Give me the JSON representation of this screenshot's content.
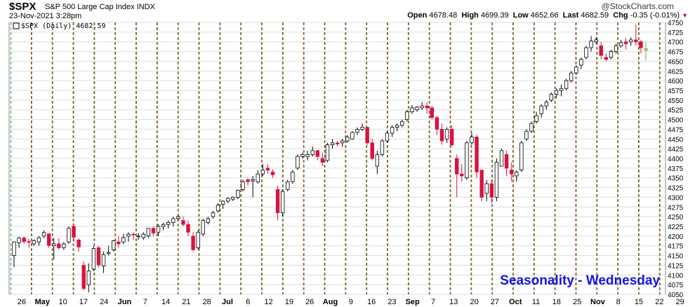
{
  "header": {
    "symbol": "$SPX",
    "description": "S&P 500 Large Cap Index INDX",
    "datetime": "23-Nov-2021 3:28pm",
    "brand": "@StockCharts.com",
    "open_label": "Open",
    "open": "4678.48",
    "high_label": "High",
    "high": "4699.39",
    "low_label": "Low",
    "low": "4652.66",
    "last_label": "Last",
    "last": "4682.59",
    "chg_label": "Chg",
    "chg": "-0.35 (-0.01%)"
  },
  "legend": "$SPX (Daily) 4682.59",
  "annotation": "Seasonality - Wednesday",
  "colors": {
    "up": "#ffffff",
    "down": "#d9123f",
    "last_bar": "#b5e08a",
    "annotation": "#1414e6",
    "mon_line": "#2aa02a",
    "wed_line": "#e02020"
  },
  "chart_data": {
    "type": "candlestick",
    "title": "$SPX (Daily)",
    "ylim": [
      4050,
      4750
    ],
    "y_ticks": [
      4050,
      4075,
      4100,
      4125,
      4150,
      4175,
      4200,
      4225,
      4250,
      4275,
      4300,
      4325,
      4350,
      4375,
      4400,
      4425,
      4450,
      4475,
      4500,
      4525,
      4550,
      4575,
      4600,
      4625,
      4650,
      4675,
      4700,
      4725,
      4750
    ],
    "grid": true,
    "x_labels": [
      "26",
      "May",
      "10",
      "17",
      "24",
      "Jun",
      "7",
      "14",
      "21",
      "28",
      "Jul",
      "6",
      "12",
      "19",
      "26",
      "Aug",
      "9",
      "16",
      "23",
      "Sep",
      "7",
      "13",
      "20",
      "27",
      "Oct",
      "11",
      "18",
      "25",
      "Nov",
      "8",
      "15",
      "22",
      "29"
    ],
    "vertical_lines": "green dashed = Mondays, red dashed = Wednesdays",
    "candles": [
      [
        4150,
        4187,
        4120,
        4185
      ],
      [
        4183,
        4198,
        4170,
        4195
      ],
      [
        4195,
        4200,
        4180,
        4186
      ],
      [
        4186,
        4192,
        4170,
        4184
      ],
      [
        4180,
        4192,
        4175,
        4188
      ],
      [
        4185,
        4200,
        4175,
        4196
      ],
      [
        4200,
        4215,
        4195,
        4209
      ],
      [
        4206,
        4206,
        4170,
        4176
      ],
      [
        4175,
        4195,
        4140,
        4180
      ],
      [
        4180,
        4195,
        4165,
        4170
      ],
      [
        4170,
        4185,
        4165,
        4180
      ],
      [
        4185,
        4225,
        4180,
        4220
      ],
      [
        4225,
        4233,
        4185,
        4197
      ],
      [
        4190,
        4195,
        4160,
        4172
      ],
      [
        4125,
        4135,
        4060,
        4065
      ],
      [
        4075,
        4130,
        4055,
        4110
      ],
      [
        4115,
        4175,
        4110,
        4168
      ],
      [
        4170,
        4175,
        4120,
        4126
      ],
      [
        4123,
        4160,
        4105,
        4152
      ],
      [
        4155,
        4175,
        4150,
        4158
      ],
      [
        4165,
        4190,
        4160,
        4188
      ],
      [
        4185,
        4200,
        4170,
        4180
      ],
      [
        4185,
        4205,
        4180,
        4196
      ],
      [
        4200,
        4210,
        4185,
        4205
      ],
      [
        4205,
        4210,
        4190,
        4203
      ],
      [
        4200,
        4208,
        4190,
        4200
      ],
      [
        4196,
        4210,
        4190,
        4205
      ],
      [
        4200,
        4220,
        4195,
        4220
      ],
      [
        4220,
        4225,
        4200,
        4208
      ],
      [
        4210,
        4230,
        4200,
        4225
      ],
      [
        4225,
        4235,
        4215,
        4230
      ],
      [
        4230,
        4240,
        4220,
        4235
      ],
      [
        4235,
        4250,
        4225,
        4245
      ],
      [
        4245,
        4255,
        4240,
        4250
      ],
      [
        4240,
        4250,
        4225,
        4230
      ],
      [
        4230,
        4240,
        4200,
        4210
      ],
      [
        4200,
        4210,
        4160,
        4165
      ],
      [
        4170,
        4215,
        4165,
        4210
      ],
      [
        4205,
        4245,
        4200,
        4240
      ],
      [
        4235,
        4250,
        4230,
        4245
      ],
      [
        4250,
        4265,
        4245,
        4260
      ],
      [
        4265,
        4285,
        4260,
        4280
      ],
      [
        4282,
        4292,
        4270,
        4290
      ],
      [
        4290,
        4300,
        4285,
        4297
      ],
      [
        4295,
        4302,
        4290,
        4300
      ],
      [
        4300,
        4320,
        4295,
        4318
      ],
      [
        4320,
        4345,
        4315,
        4340
      ],
      [
        4345,
        4350,
        4330,
        4340
      ],
      [
        4342,
        4355,
        4300,
        4345
      ],
      [
        4340,
        4370,
        4335,
        4360
      ],
      [
        4360,
        4385,
        4355,
        4370
      ],
      [
        4375,
        4385,
        4360,
        4370
      ],
      [
        4365,
        4372,
        4350,
        4358
      ],
      [
        4320,
        4330,
        4240,
        4260
      ],
      [
        4260,
        4320,
        4250,
        4315
      ],
      [
        4320,
        4345,
        4315,
        4340
      ],
      [
        4340,
        4370,
        4335,
        4365
      ],
      [
        4375,
        4410,
        4370,
        4405
      ],
      [
        4405,
        4415,
        4400,
        4410
      ],
      [
        4405,
        4420,
        4395,
        4410
      ],
      [
        4410,
        4430,
        4405,
        4420
      ],
      [
        4420,
        4422,
        4395,
        4405
      ],
      [
        4400,
        4415,
        4380,
        4390
      ],
      [
        4395,
        4440,
        4390,
        4435
      ],
      [
        4435,
        4450,
        4425,
        4440
      ],
      [
        4440,
        4445,
        4430,
        4437
      ],
      [
        4440,
        4450,
        4430,
        4445
      ],
      [
        4445,
        4460,
        4440,
        4455
      ],
      [
        4450,
        4470,
        4448,
        4467
      ],
      [
        4467,
        4480,
        4460,
        4475
      ],
      [
        4475,
        4490,
        4470,
        4480
      ],
      [
        4480,
        4475,
        4435,
        4440
      ],
      [
        4440,
        4450,
        4395,
        4400
      ],
      [
        4380,
        4420,
        4360,
        4410
      ],
      [
        4410,
        4450,
        4405,
        4445
      ],
      [
        4445,
        4470,
        4440,
        4465
      ],
      [
        4465,
        4485,
        4455,
        4480
      ],
      [
        4480,
        4490,
        4470,
        4485
      ],
      [
        4485,
        4500,
        4480,
        4495
      ],
      [
        4500,
        4525,
        4495,
        4520
      ],
      [
        4520,
        4537,
        4515,
        4530
      ],
      [
        4525,
        4535,
        4520,
        4532
      ],
      [
        4530,
        4545,
        4525,
        4535
      ],
      [
        4535,
        4545,
        4515,
        4530
      ],
      [
        4530,
        4535,
        4500,
        4505
      ],
      [
        4505,
        4510,
        4460,
        4475
      ],
      [
        4475,
        4490,
        4435,
        4445
      ],
      [
        4450,
        4480,
        4440,
        4475
      ],
      [
        4475,
        4485,
        4430,
        4435
      ],
      [
        4400,
        4410,
        4300,
        4360
      ],
      [
        4360,
        4385,
        4340,
        4355
      ],
      [
        4350,
        4445,
        4345,
        4440
      ],
      [
        4440,
        4465,
        4435,
        4455
      ],
      [
        4455,
        4460,
        4350,
        4365
      ],
      [
        4370,
        4370,
        4290,
        4300
      ],
      [
        4310,
        4345,
        4290,
        4335
      ],
      [
        4335,
        4345,
        4285,
        4300
      ],
      [
        4300,
        4400,
        4290,
        4390
      ],
      [
        4380,
        4425,
        4380,
        4420
      ],
      [
        4410,
        4420,
        4355,
        4375
      ],
      [
        4370,
        4390,
        4340,
        4360
      ],
      [
        4355,
        4370,
        4340,
        4365
      ],
      [
        4370,
        4445,
        4365,
        4440
      ],
      [
        4450,
        4475,
        4445,
        4470
      ],
      [
        4470,
        4495,
        4465,
        4490
      ],
      [
        4495,
        4520,
        4490,
        4510
      ],
      [
        4515,
        4540,
        4505,
        4535
      ],
      [
        4535,
        4550,
        4525,
        4545
      ],
      [
        4550,
        4570,
        4545,
        4565
      ],
      [
        4565,
        4580,
        4555,
        4575
      ],
      [
        4575,
        4590,
        4560,
        4580
      ],
      [
        4580,
        4605,
        4575,
        4600
      ],
      [
        4600,
        4625,
        4595,
        4620
      ],
      [
        4620,
        4640,
        4615,
        4635
      ],
      [
        4640,
        4660,
        4630,
        4655
      ],
      [
        4660,
        4690,
        4655,
        4685
      ],
      [
        4685,
        4715,
        4675,
        4702
      ],
      [
        4700,
        4712,
        4695,
        4705
      ],
      [
        4690,
        4700,
        4655,
        4665
      ],
      [
        4660,
        4670,
        4650,
        4655
      ],
      [
        4660,
        4680,
        4655,
        4675
      ],
      [
        4675,
        4695,
        4670,
        4690
      ],
      [
        4690,
        4705,
        4685,
        4698
      ],
      [
        4700,
        4710,
        4680,
        4695
      ],
      [
        4700,
        4712,
        4690,
        4705
      ],
      [
        4705,
        4745,
        4690,
        4700
      ],
      [
        4700,
        4705,
        4670,
        4685
      ],
      [
        4678.48,
        4699.39,
        4652.66,
        4682.59
      ]
    ]
  }
}
